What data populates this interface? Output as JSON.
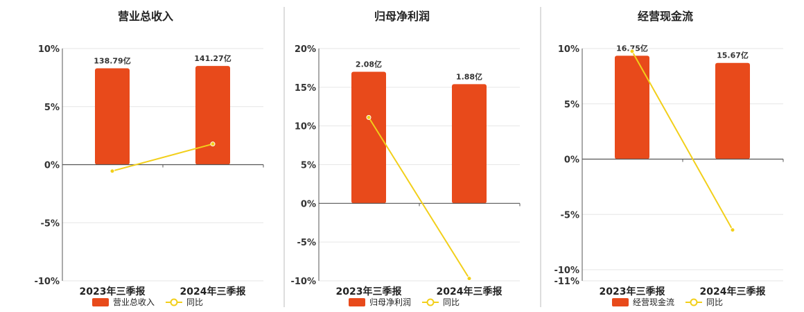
{
  "colors": {
    "bar": "#e84a1b",
    "line": "#f2cf1a",
    "grid": "#e6e6e6",
    "axis": "#555555",
    "divider": "#bbbbbb"
  },
  "chart_data": [
    {
      "type": "bar",
      "title": "营业总收入",
      "categories": [
        "2023年三季报",
        "2024年三季报"
      ],
      "series": [
        {
          "name": "营业总收入",
          "kind": "bar",
          "values": [
            8.3,
            8.5
          ],
          "data_labels": [
            "138.79亿",
            "141.27亿"
          ]
        },
        {
          "name": "同比",
          "kind": "line",
          "values": [
            -0.55,
            1.78
          ]
        }
      ],
      "ylim": [
        -10,
        10
      ],
      "yticks": [
        -10,
        -5,
        0,
        5,
        10
      ],
      "ytick_labels": [
        "-10%",
        "-5%",
        "0%",
        "5%",
        "10%"
      ],
      "grid": true,
      "legend": "bottom"
    },
    {
      "type": "bar",
      "title": "归母净利润",
      "categories": [
        "2023年三季报",
        "2024年三季报"
      ],
      "series": [
        {
          "name": "归母净利润",
          "kind": "bar",
          "values": [
            17.0,
            15.4
          ],
          "data_labels": [
            "2.08亿",
            "1.88亿"
          ]
        },
        {
          "name": "同比",
          "kind": "line",
          "values": [
            11.1,
            -9.7
          ]
        }
      ],
      "ylim": [
        -10,
        20
      ],
      "yticks": [
        -10,
        -5,
        0,
        5,
        10,
        15,
        20
      ],
      "ytick_labels": [
        "-10%",
        "-5%",
        "0%",
        "5%",
        "10%",
        "15%",
        "20%"
      ],
      "grid": true,
      "legend": "bottom"
    },
    {
      "type": "bar",
      "title": "经营现金流",
      "categories": [
        "2023年三季报",
        "2024年三季报"
      ],
      "series": [
        {
          "name": "经营现金流",
          "kind": "bar",
          "values": [
            9.35,
            8.7
          ],
          "data_labels": [
            "16.75亿",
            "15.67亿"
          ]
        },
        {
          "name": "同比",
          "kind": "line",
          "values": [
            9.75,
            -6.4
          ]
        }
      ],
      "ylim": [
        -11,
        10
      ],
      "yticks": [
        -11,
        -10,
        -5,
        0,
        5,
        10
      ],
      "ytick_labels": [
        "-11%",
        "-10%",
        "-5%",
        "0%",
        "5%",
        "10%"
      ],
      "grid": true,
      "legend": "bottom"
    }
  ]
}
